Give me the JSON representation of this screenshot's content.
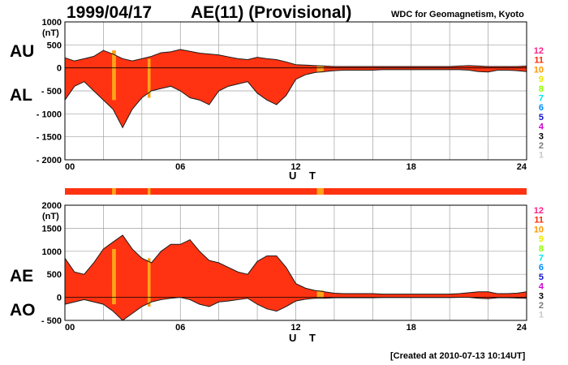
{
  "header": {
    "date": "1999/04/17",
    "title": "AE(11) (Provisional)",
    "org": "WDC for Geomagnetism, Kyoto"
  },
  "footer": "[Created at 2010-07-13 10:14UT]",
  "unit_label": "(nT)",
  "xaxis_label": "U T",
  "station_scale": [
    {
      "label": "12",
      "color": "#ff1f86"
    },
    {
      "label": "11",
      "color": "#ff2a00"
    },
    {
      "label": "10",
      "color": "#ff9900"
    },
    {
      "label": "9",
      "color": "#e8e800"
    },
    {
      "label": "8",
      "color": "#8cff00"
    },
    {
      "label": "7",
      "color": "#00e8e8"
    },
    {
      "label": "6",
      "color": "#008cff"
    },
    {
      "label": "5",
      "color": "#1414c8"
    },
    {
      "label": "4",
      "color": "#d400d4"
    },
    {
      "label": "3",
      "color": "#000000"
    },
    {
      "label": "2",
      "color": "#7a7a7a"
    },
    {
      "label": "1",
      "color": "#c8c8c8"
    }
  ],
  "colors": {
    "fill": "#ff3311",
    "fill_orange": "#ffa31a",
    "line": "#1a1a1a",
    "grid": "#a0a0a0",
    "strip": "#ff3311"
  },
  "strip_orange_hours": [
    [
      2.45,
      2.65
    ],
    [
      4.3,
      4.45
    ],
    [
      13.1,
      13.45
    ]
  ],
  "chart_data": [
    {
      "type": "area",
      "panel": "AU/AL",
      "upper_label": "AU",
      "lower_label": "AL",
      "xlim": [
        0,
        24
      ],
      "ylim": [
        -2000,
        1000
      ],
      "x_ticks": [
        "00",
        "06",
        "12",
        "18",
        "24"
      ],
      "y_ticks": [
        "1000",
        "500",
        "0",
        "- 500",
        "- 1000",
        "- 1500",
        "- 2000"
      ],
      "grid": true,
      "x": [
        0,
        0.5,
        1,
        1.5,
        2,
        2.5,
        3,
        3.5,
        4,
        4.5,
        5,
        5.5,
        6,
        6.5,
        7,
        7.5,
        8,
        8.5,
        9,
        9.5,
        10,
        10.5,
        11,
        11.5,
        12,
        12.5,
        13,
        13.5,
        14,
        14.5,
        15,
        15.5,
        16,
        16.5,
        17,
        17.5,
        18,
        18.5,
        19,
        19.5,
        20,
        20.5,
        21,
        21.5,
        22,
        22.5,
        23,
        23.5,
        24
      ],
      "series": [
        {
          "name": "AU",
          "values": [
            220,
            150,
            200,
            250,
            380,
            300,
            200,
            150,
            200,
            250,
            330,
            350,
            400,
            360,
            320,
            300,
            280,
            240,
            200,
            180,
            230,
            200,
            180,
            130,
            70,
            60,
            50,
            40,
            30,
            30,
            30,
            30,
            30,
            30,
            30,
            30,
            30,
            30,
            30,
            30,
            30,
            40,
            50,
            40,
            30,
            30,
            30,
            30,
            40
          ]
        },
        {
          "name": "AL",
          "values": [
            -700,
            -400,
            -300,
            -500,
            -700,
            -900,
            -1300,
            -900,
            -650,
            -500,
            -450,
            -400,
            -500,
            -650,
            -700,
            -800,
            -500,
            -400,
            -350,
            -300,
            -550,
            -700,
            -800,
            -600,
            -250,
            -150,
            -100,
            -80,
            -60,
            -50,
            -50,
            -50,
            -50,
            -40,
            -40,
            -40,
            -40,
            -40,
            -40,
            -40,
            -40,
            -40,
            -50,
            -80,
            -90,
            -50,
            -50,
            -60,
            -80
          ]
        }
      ]
    },
    {
      "type": "area",
      "panel": "AE/AO",
      "upper_label": "AE",
      "lower_label": "AO",
      "xlim": [
        0,
        24
      ],
      "ylim": [
        -500,
        2000
      ],
      "x_ticks": [
        "00",
        "06",
        "12",
        "18",
        "24"
      ],
      "y_ticks": [
        "2000",
        "1500",
        "1000",
        "500",
        "0",
        "- 500"
      ],
      "grid": true,
      "x": [
        0,
        0.5,
        1,
        1.5,
        2,
        2.5,
        3,
        3.5,
        4,
        4.5,
        5,
        5.5,
        6,
        6.5,
        7,
        7.5,
        8,
        8.5,
        9,
        9.5,
        10,
        10.5,
        11,
        11.5,
        12,
        12.5,
        13,
        13.5,
        14,
        14.5,
        15,
        15.5,
        16,
        16.5,
        17,
        17.5,
        18,
        18.5,
        19,
        19.5,
        20,
        20.5,
        21,
        21.5,
        22,
        22.5,
        23,
        23.5,
        24
      ],
      "series": [
        {
          "name": "AE",
          "values": [
            850,
            550,
            500,
            750,
            1050,
            1200,
            1350,
            1050,
            850,
            750,
            1000,
            1150,
            1150,
            1250,
            1000,
            800,
            750,
            650,
            550,
            500,
            780,
            900,
            900,
            650,
            300,
            200,
            150,
            120,
            90,
            80,
            80,
            80,
            80,
            70,
            70,
            70,
            70,
            70,
            70,
            70,
            70,
            80,
            100,
            120,
            120,
            80,
            80,
            90,
            120
          ]
        },
        {
          "name": "AO",
          "values": [
            -150,
            -100,
            -50,
            -100,
            -150,
            -300,
            -500,
            -350,
            -200,
            -100,
            -50,
            -20,
            0,
            -50,
            -150,
            -200,
            -100,
            -80,
            -50,
            -20,
            -150,
            -250,
            -300,
            -200,
            -80,
            -40,
            -20,
            -20,
            -10,
            -10,
            -10,
            -10,
            -10,
            -5,
            -5,
            -5,
            -5,
            -5,
            -5,
            -5,
            -5,
            0,
            0,
            -20,
            -30,
            -10,
            -10,
            -15,
            -20
          ]
        }
      ]
    }
  ]
}
